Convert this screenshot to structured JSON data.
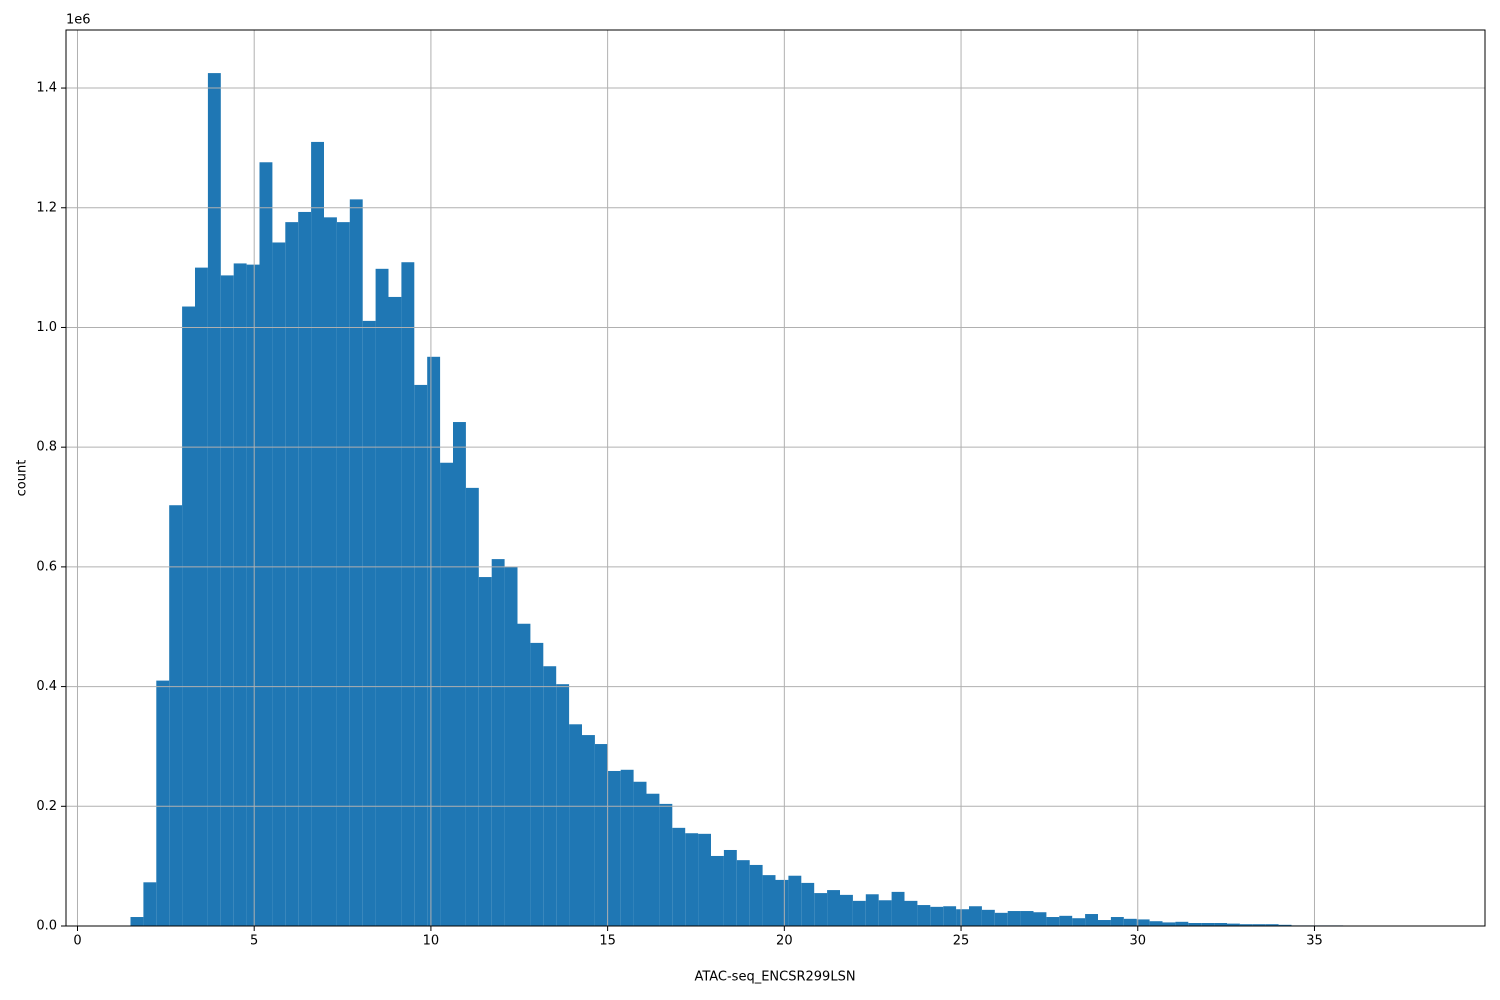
{
  "chart_data": {
    "type": "histogram",
    "x_label": "ATAC-seq_ENCSR299LSN",
    "y_label": "count",
    "y_multiplier": "1e6",
    "color": "#1f77b4",
    "grid": true,
    "bins": [
      1.5,
      1.865,
      2.23,
      2.595,
      2.96,
      3.325,
      3.69,
      4.055,
      4.42,
      4.785,
      5.15,
      5.515,
      5.88,
      6.245,
      6.61,
      6.975,
      7.34,
      7.705,
      8.07,
      8.435,
      8.8,
      9.165,
      9.53,
      9.895,
      10.26,
      10.625,
      10.99,
      11.355,
      11.72,
      12.085,
      12.45,
      12.815,
      13.18,
      13.545,
      13.91,
      14.275,
      14.64,
      15.005,
      15.37,
      15.735,
      16.1,
      16.465,
      16.83,
      17.195,
      17.56,
      17.925,
      18.29,
      18.655,
      19.02,
      19.385,
      19.75,
      20.115,
      20.48,
      20.845,
      21.21,
      21.575,
      21.94,
      22.305,
      22.67,
      23.035,
      23.4,
      23.765,
      24.13,
      24.495,
      24.86,
      25.225,
      25.59,
      25.955,
      26.32,
      26.685,
      27.05,
      27.415,
      27.78,
      28.145,
      28.51,
      28.875,
      29.24,
      29.605,
      29.97,
      30.335,
      30.7,
      31.065,
      31.43,
      31.795,
      32.16,
      32.525,
      32.89,
      33.255,
      33.62,
      33.985,
      34.35,
      34.715,
      35.08,
      35.445,
      35.81,
      36.175,
      36.54,
      36.905,
      37.27,
      37.635,
      38.0
    ],
    "values": [
      0.015,
      0.073,
      0.41,
      0.703,
      1.035,
      1.1,
      1.425,
      1.087,
      1.107,
      1.105,
      1.276,
      1.142,
      1.176,
      1.193,
      1.31,
      1.184,
      1.176,
      1.214,
      1.011,
      1.098,
      1.051,
      1.109,
      0.904,
      0.951,
      0.774,
      0.842,
      0.732,
      0.583,
      0.613,
      0.6,
      0.505,
      0.473,
      0.434,
      0.404,
      0.337,
      0.319,
      0.304,
      0.259,
      0.261,
      0.241,
      0.221,
      0.204,
      0.164,
      0.155,
      0.154,
      0.117,
      0.127,
      0.11,
      0.102,
      0.085,
      0.077,
      0.084,
      0.072,
      0.055,
      0.06,
      0.052,
      0.042,
      0.053,
      0.043,
      0.057,
      0.042,
      0.035,
      0.032,
      0.033,
      0.028,
      0.033,
      0.027,
      0.022,
      0.025,
      0.025,
      0.023,
      0.015,
      0.017,
      0.013,
      0.02,
      0.01,
      0.015,
      0.012,
      0.011,
      0.008,
      0.006,
      0.007,
      0.005,
      0.005,
      0.005,
      0.004,
      0.003,
      0.003,
      0.003,
      0.002,
      0.001,
      0.001,
      0.001,
      0.001,
      0.0008,
      0.0006,
      0.0005,
      0.0004,
      0.0003,
      0.0002
    ],
    "xlim": [
      -0.325,
      39.825
    ],
    "xticks": [
      0,
      5,
      10,
      15,
      20,
      25,
      30,
      35
    ],
    "ylim": [
      0,
      1.497
    ],
    "yticks": [
      {
        "value": 0,
        "label": "0.0"
      },
      0.2,
      0.4,
      0.6,
      0.8,
      {
        "value": 1,
        "label": "1.0"
      },
      1.2,
      1.4
    ]
  }
}
